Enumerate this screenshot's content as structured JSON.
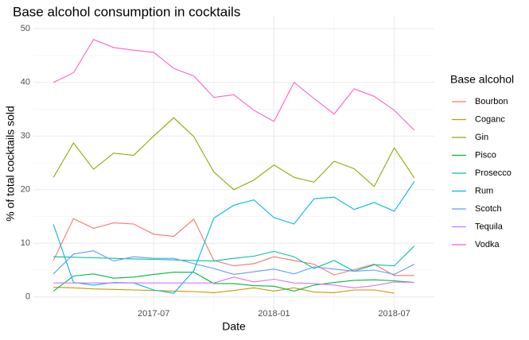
{
  "chart_data": {
    "type": "line",
    "title": "Base alcohol consumption in cocktails",
    "x_label": "Date",
    "y_label": "% of total cocktails sold",
    "legend_title": "Base alcohol",
    "legend": "right",
    "grid": true,
    "minor_grid": true,
    "x": [
      "2017-02",
      "2017-03",
      "2017-04",
      "2017-05",
      "2017-06",
      "2017-07",
      "2017-08",
      "2017-09",
      "2017-10",
      "2017-11",
      "2017-12",
      "2018-01",
      "2018-02",
      "2018-03",
      "2018-04",
      "2018-05",
      "2018-06",
      "2018-07",
      "2018-08"
    ],
    "xlim": [
      "2017-01",
      "2018-09"
    ],
    "xticks": [
      "2017-07",
      "2018-01",
      "2018-07"
    ],
    "ylim": [
      -2.4,
      52.4
    ],
    "yticks": [
      0,
      10,
      20,
      30,
      40,
      50
    ],
    "series": [
      {
        "name": "Bourbon",
        "color": "#F8766D",
        "values": [
          6.8,
          14.6,
          12.8,
          13.8,
          13.6,
          11.7,
          11.3,
          14.5,
          6.8,
          5.8,
          6.2,
          7.5,
          6.8,
          6.1,
          4.1,
          5.1,
          6.1,
          4.0,
          4.0
        ]
      },
      {
        "name": "Coganc",
        "color": "#D39200",
        "values": [
          1.8,
          1.7,
          1.5,
          1.4,
          1.3,
          1.2,
          1.1,
          1.0,
          0.8,
          1.2,
          1.7,
          1.1,
          1.7,
          0.9,
          0.8,
          1.3,
          1.3,
          0.7,
          null
        ]
      },
      {
        "name": "Gin",
        "color": "#93AA00",
        "values": [
          22.3,
          28.7,
          23.8,
          26.8,
          26.4,
          30,
          33.4,
          29.9,
          23.3,
          20,
          21.8,
          24.6,
          22.3,
          21.4,
          25.3,
          23.9,
          20.6,
          27.8,
          22.2
        ]
      },
      {
        "name": "Pisco",
        "color": "#00BA38",
        "values": [
          1.1,
          3.9,
          4.3,
          3.5,
          3.7,
          4.2,
          4.6,
          4.6,
          2.5,
          2.5,
          2.1,
          2.0,
          1.1,
          2.2,
          2.7,
          3.1,
          3.2,
          3.0,
          2.7
        ]
      },
      {
        "name": "Prosecco",
        "color": "#00C19F",
        "values": [
          7.5,
          7.4,
          7.3,
          7.2,
          7.1,
          7.0,
          6.9,
          6.8,
          6.7,
          7.2,
          7.6,
          8.5,
          7.5,
          5.3,
          6.8,
          4.8,
          6.0,
          5.8,
          9.5
        ]
      },
      {
        "name": "Rum",
        "color": "#00B9E3",
        "values": [
          13.5,
          2.7,
          2.2,
          2.7,
          2.6,
          1.3,
          0.7,
          4.9,
          14.7,
          17.1,
          18.1,
          14.8,
          13.6,
          18.3,
          18.6,
          16.3,
          17.6,
          16.0,
          21.5
        ]
      },
      {
        "name": "Scotch",
        "color": "#619CFF",
        "values": [
          4.3,
          8.0,
          8.6,
          6.7,
          7.5,
          7.2,
          7.2,
          6.2,
          5.3,
          4.2,
          4.7,
          5.2,
          4.3,
          5.6,
          5.2,
          4.8,
          5.0,
          4.2,
          6.1
        ]
      },
      {
        "name": "Tequila",
        "color": "#DB72FB",
        "values": [
          2.6,
          2.6,
          2.6,
          2.6,
          2.6,
          2.6,
          2.6,
          2.6,
          2.6,
          3.7,
          2.8,
          3.3,
          2.6,
          2.5,
          2.2,
          1.7,
          2.1,
          2.8,
          2.7
        ]
      },
      {
        "name": "Vodka",
        "color": "#FF61C3",
        "values": [
          40,
          41.8,
          48,
          46.5,
          46,
          45.6,
          42.6,
          41.2,
          37.2,
          37.7,
          34.8,
          32.7,
          40,
          37,
          34.1,
          38.8,
          37.4,
          34.8,
          31.1
        ]
      }
    ]
  }
}
